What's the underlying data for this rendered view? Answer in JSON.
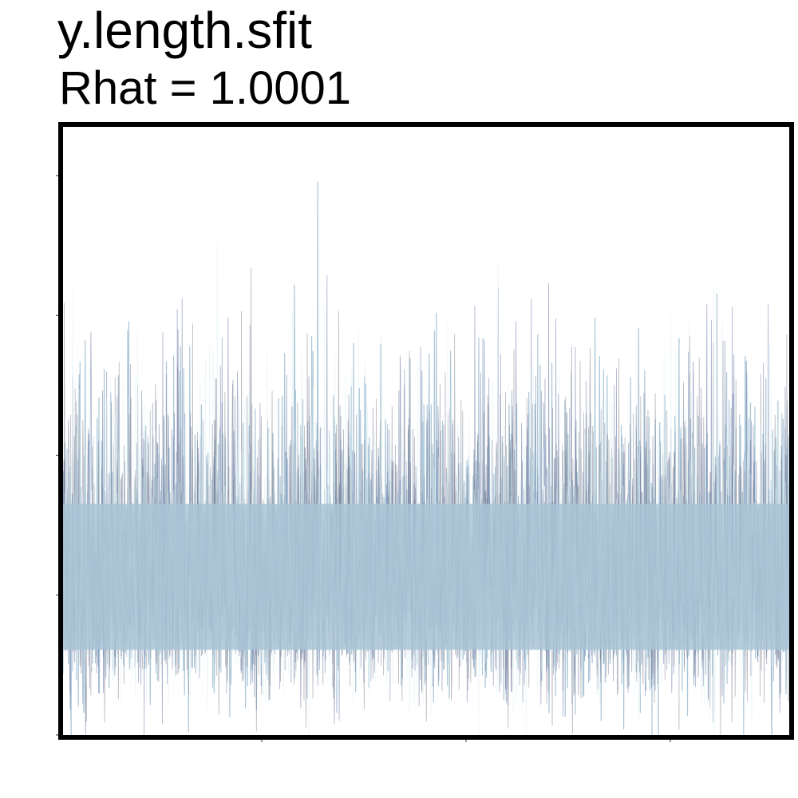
{
  "chart_data": {
    "type": "line",
    "title": "y.length.sfit",
    "subtitle": "Rhat = 1.0001",
    "xlabel": "",
    "ylabel": "",
    "x_tick_labels": [],
    "y_tick_labels": [],
    "grid": false,
    "legend": "none",
    "series": [
      {
        "color": "#a9c4d6",
        "values_summary": {
          "typical_band": [
            0.15,
            0.55
          ],
          "max_seen": 0.99,
          "min_seen": 0.0
        }
      },
      {
        "color": "#5c6d9c",
        "values_summary": {
          "typical_band": [
            0.05,
            0.7
          ],
          "max_seen": 0.98,
          "min_seen": 0.01
        }
      },
      {
        "color": "#7a7a8a",
        "values_summary": {
          "typical_band": [
            0.05,
            0.7
          ],
          "max_seen": 0.85,
          "min_seen": 0.0
        }
      },
      {
        "color": "#d9eef2",
        "values_summary": {
          "typical_band": [
            0.05,
            0.75
          ],
          "max_seen": 0.99,
          "min_seen": 0.0
        }
      }
    ],
    "note_on_data": "Axis tick labels are not shown; values are expressed as a 0-1 fraction of the y-axis range."
  }
}
